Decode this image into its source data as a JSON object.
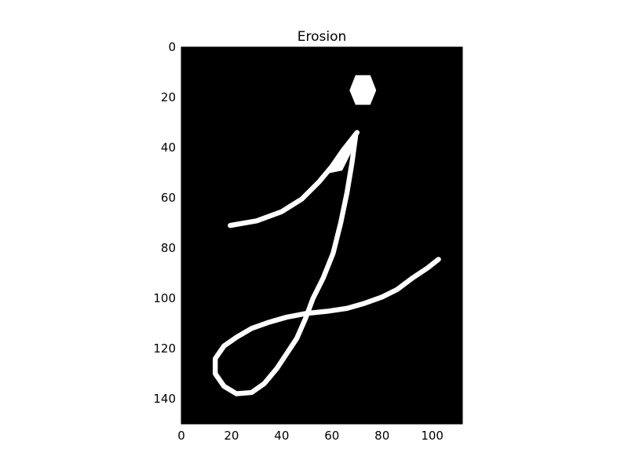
{
  "chart_data": {
    "type": "heatmap",
    "title": "Erosion",
    "xlabel": "",
    "ylabel": "",
    "xlim": [
      0,
      112
    ],
    "ylim": [
      150,
      0
    ],
    "x_ticks": [
      "0",
      "20",
      "40",
      "60",
      "80",
      "100"
    ],
    "y_ticks": [
      "0",
      "20",
      "40",
      "60",
      "80",
      "100",
      "120",
      "140"
    ],
    "grid": false,
    "colormap": "gray",
    "background_color": "#000000",
    "foreground_color": "#ffffff",
    "strokes": [
      {
        "name": "dot",
        "points": [
          [
            69.5,
            11.3
          ],
          [
            75.2,
            11.3
          ],
          [
            77.5,
            17.2
          ],
          [
            75.2,
            22.8
          ],
          [
            69.5,
            22.8
          ],
          [
            67.2,
            17.2
          ]
        ],
        "closed": true,
        "filled": true
      },
      {
        "name": "upper-arm",
        "width": 2.0,
        "points": [
          [
            19.5,
            71.0
          ],
          [
            30,
            69.2
          ],
          [
            40,
            65.5
          ],
          [
            48,
            60.5
          ],
          [
            55,
            53.5
          ],
          [
            60,
            47.5
          ],
          [
            64.5,
            41.0
          ],
          [
            70.0,
            34.0
          ]
        ]
      },
      {
        "name": "upper-wedge",
        "points": [
          [
            59.0,
            50.0
          ],
          [
            64.5,
            41.0
          ],
          [
            70.5,
            33.5
          ],
          [
            69.5,
            38.0
          ],
          [
            64.0,
            49.0
          ]
        ],
        "closed": true,
        "filled": true
      },
      {
        "name": "stem-and-loop",
        "width": 2.0,
        "points": [
          [
            69.5,
            35.0
          ],
          [
            68,
            46
          ],
          [
            66,
            58
          ],
          [
            63.5,
            70
          ],
          [
            60.5,
            82
          ],
          [
            56.5,
            92
          ],
          [
            52.5,
            100
          ],
          [
            49.5,
            108
          ],
          [
            46,
            116
          ],
          [
            42,
            122
          ],
          [
            38,
            128
          ],
          [
            33,
            134
          ],
          [
            28,
            137.5
          ],
          [
            22,
            138
          ],
          [
            17,
            135
          ],
          [
            13.5,
            130
          ],
          [
            13.5,
            124
          ],
          [
            17,
            119
          ],
          [
            22,
            115.5
          ],
          [
            28,
            112
          ],
          [
            35,
            109.5
          ],
          [
            42,
            107.5
          ],
          [
            50,
            106
          ],
          [
            58,
            105.2
          ],
          [
            66,
            104
          ],
          [
            73,
            102
          ],
          [
            80,
            99.5
          ],
          [
            86,
            96.5
          ],
          [
            92,
            92
          ],
          [
            98,
            88
          ],
          [
            102.5,
            84.5
          ]
        ]
      }
    ]
  }
}
